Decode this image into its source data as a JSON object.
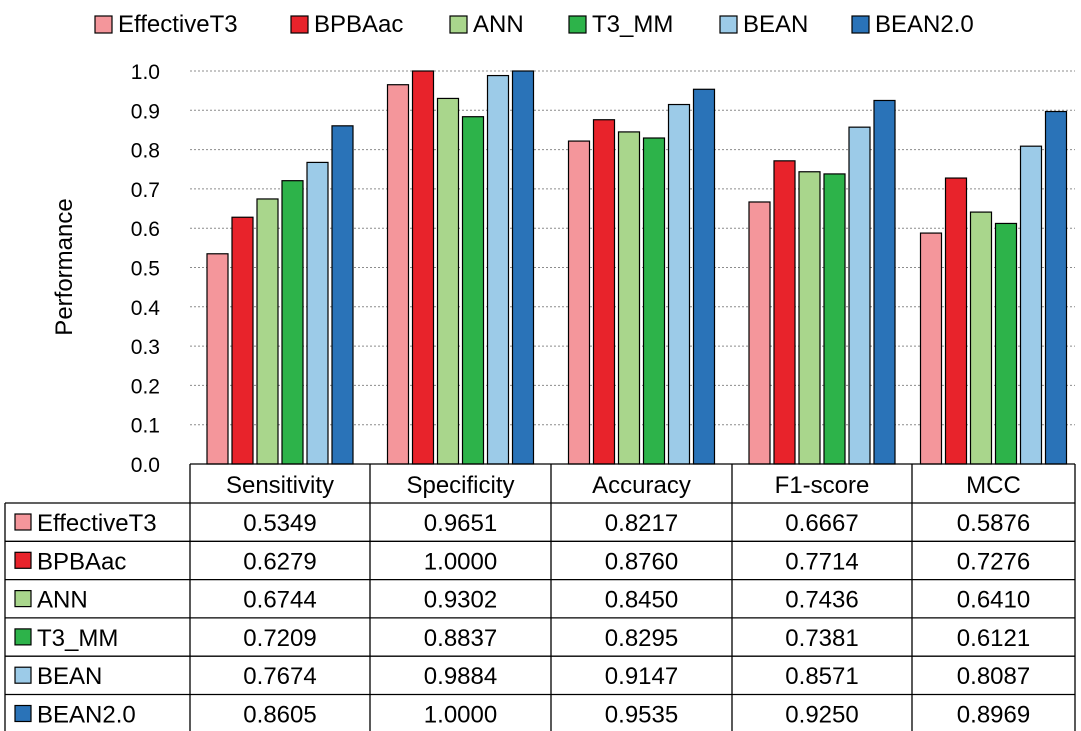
{
  "chart_data": {
    "type": "bar",
    "ylabel": "Performance",
    "ylim": [
      0,
      1.0
    ],
    "ytick_step": 0.1,
    "yticks": [
      "0.0",
      "0.1",
      "0.2",
      "0.3",
      "0.4",
      "0.5",
      "0.6",
      "0.7",
      "0.8",
      "0.9",
      "1.0"
    ],
    "grid": true,
    "legend_position": "top",
    "categories": [
      "Sensitivity",
      "Specificity",
      "Accuracy",
      "F1-score",
      "MCC"
    ],
    "series": [
      {
        "name": "EffectiveT3",
        "color": "#f4969b",
        "values": [
          0.5349,
          0.9651,
          0.8217,
          0.6667,
          0.5876
        ],
        "labels": [
          "0.5349",
          "0.9651",
          "0.8217",
          "0.6667",
          "0.5876"
        ]
      },
      {
        "name": "BPBAac",
        "color": "#e8232b",
        "values": [
          0.6279,
          1.0,
          0.876,
          0.7714,
          0.7276
        ],
        "labels": [
          "0.6279",
          "1.0000",
          "0.8760",
          "0.7714",
          "0.7276"
        ]
      },
      {
        "name": "ANN",
        "color": "#a9d68c",
        "values": [
          0.6744,
          0.9302,
          0.845,
          0.7436,
          0.641
        ],
        "labels": [
          "0.6744",
          "0.9302",
          "0.8450",
          "0.7436",
          "0.6410"
        ]
      },
      {
        "name": "T3_MM",
        "color": "#2db34a",
        "values": [
          0.7209,
          0.8837,
          0.8295,
          0.7381,
          0.6121
        ],
        "labels": [
          "0.7209",
          "0.8837",
          "0.8295",
          "0.7381",
          "0.6121"
        ]
      },
      {
        "name": "BEAN",
        "color": "#9ccbe8",
        "values": [
          0.7674,
          0.9884,
          0.9147,
          0.8571,
          0.8087
        ],
        "labels": [
          "0.7674",
          "0.9884",
          "0.9147",
          "0.8571",
          "0.8087"
        ]
      },
      {
        "name": "BEAN2.0",
        "color": "#2a73b8",
        "values": [
          0.8605,
          1.0,
          0.9535,
          0.925,
          0.8969
        ],
        "labels": [
          "0.8605",
          "1.0000",
          "0.9535",
          "0.9250",
          "0.8969"
        ]
      }
    ]
  }
}
